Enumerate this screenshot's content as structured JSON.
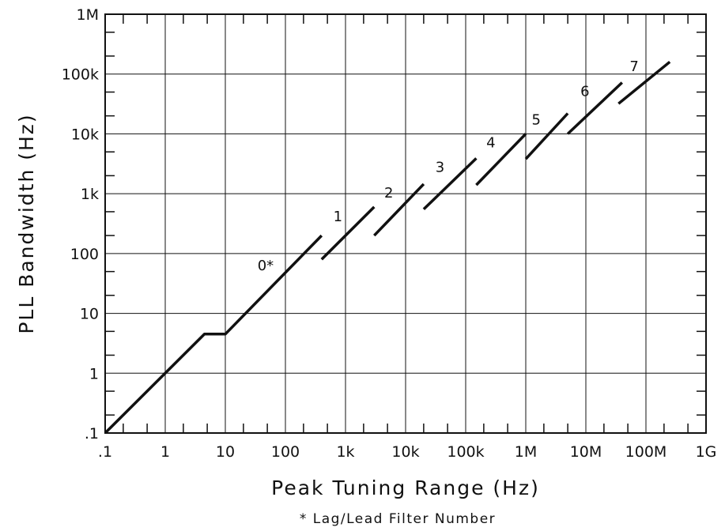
{
  "chart_data": {
    "type": "line",
    "xlabel": "Peak Tuning Range (Hz)",
    "ylabel": "PLL Bandwidth (Hz)",
    "note": "* Lag/Lead Filter Number",
    "x_scale": "log",
    "y_scale": "log",
    "xlim": [
      0.1,
      1000000000
    ],
    "ylim": [
      0.1,
      1000000
    ],
    "grid": true,
    "x_ticks": [
      {
        "value": 0.1,
        "label": ".1"
      },
      {
        "value": 1,
        "label": "1"
      },
      {
        "value": 10,
        "label": "10"
      },
      {
        "value": 100,
        "label": "100"
      },
      {
        "value": 1000,
        "label": "1k"
      },
      {
        "value": 10000,
        "label": "10k"
      },
      {
        "value": 100000,
        "label": "100k"
      },
      {
        "value": 1000000,
        "label": "1M"
      },
      {
        "value": 10000000,
        "label": "10M"
      },
      {
        "value": 100000000,
        "label": "100M"
      },
      {
        "value": 1000000000,
        "label": "1G"
      }
    ],
    "y_ticks": [
      {
        "value": 0.1,
        "label": ".1"
      },
      {
        "value": 1,
        "label": "1"
      },
      {
        "value": 10,
        "label": "10"
      },
      {
        "value": 100,
        "label": "100"
      },
      {
        "value": 1000,
        "label": "1k"
      },
      {
        "value": 10000,
        "label": "10k"
      },
      {
        "value": 100000,
        "label": "100k"
      },
      {
        "value": 1000000,
        "label": "1M"
      }
    ],
    "series": [
      {
        "label": "0*",
        "x": [
          0.1,
          4.5,
          10,
          400
        ],
        "y": [
          0.1,
          4.5,
          4.5,
          200
        ]
      },
      {
        "label": "1",
        "x": [
          400,
          3000
        ],
        "y": [
          80,
          600
        ]
      },
      {
        "label": "2",
        "x": [
          3000,
          20000
        ],
        "y": [
          200,
          1450
        ]
      },
      {
        "label": "3",
        "x": [
          20000,
          150000
        ],
        "y": [
          550,
          3900
        ]
      },
      {
        "label": "4",
        "x": [
          150000,
          1000000
        ],
        "y": [
          1400,
          10000
        ]
      },
      {
        "label": "5",
        "x": [
          1000000,
          5000000
        ],
        "y": [
          3800,
          22000
        ]
      },
      {
        "label": "6",
        "x": [
          5000000,
          40000000
        ],
        "y": [
          10000,
          72000
        ]
      },
      {
        "label": "7",
        "x": [
          35000000,
          250000000
        ],
        "y": [
          32000,
          160000
        ]
      }
    ]
  }
}
